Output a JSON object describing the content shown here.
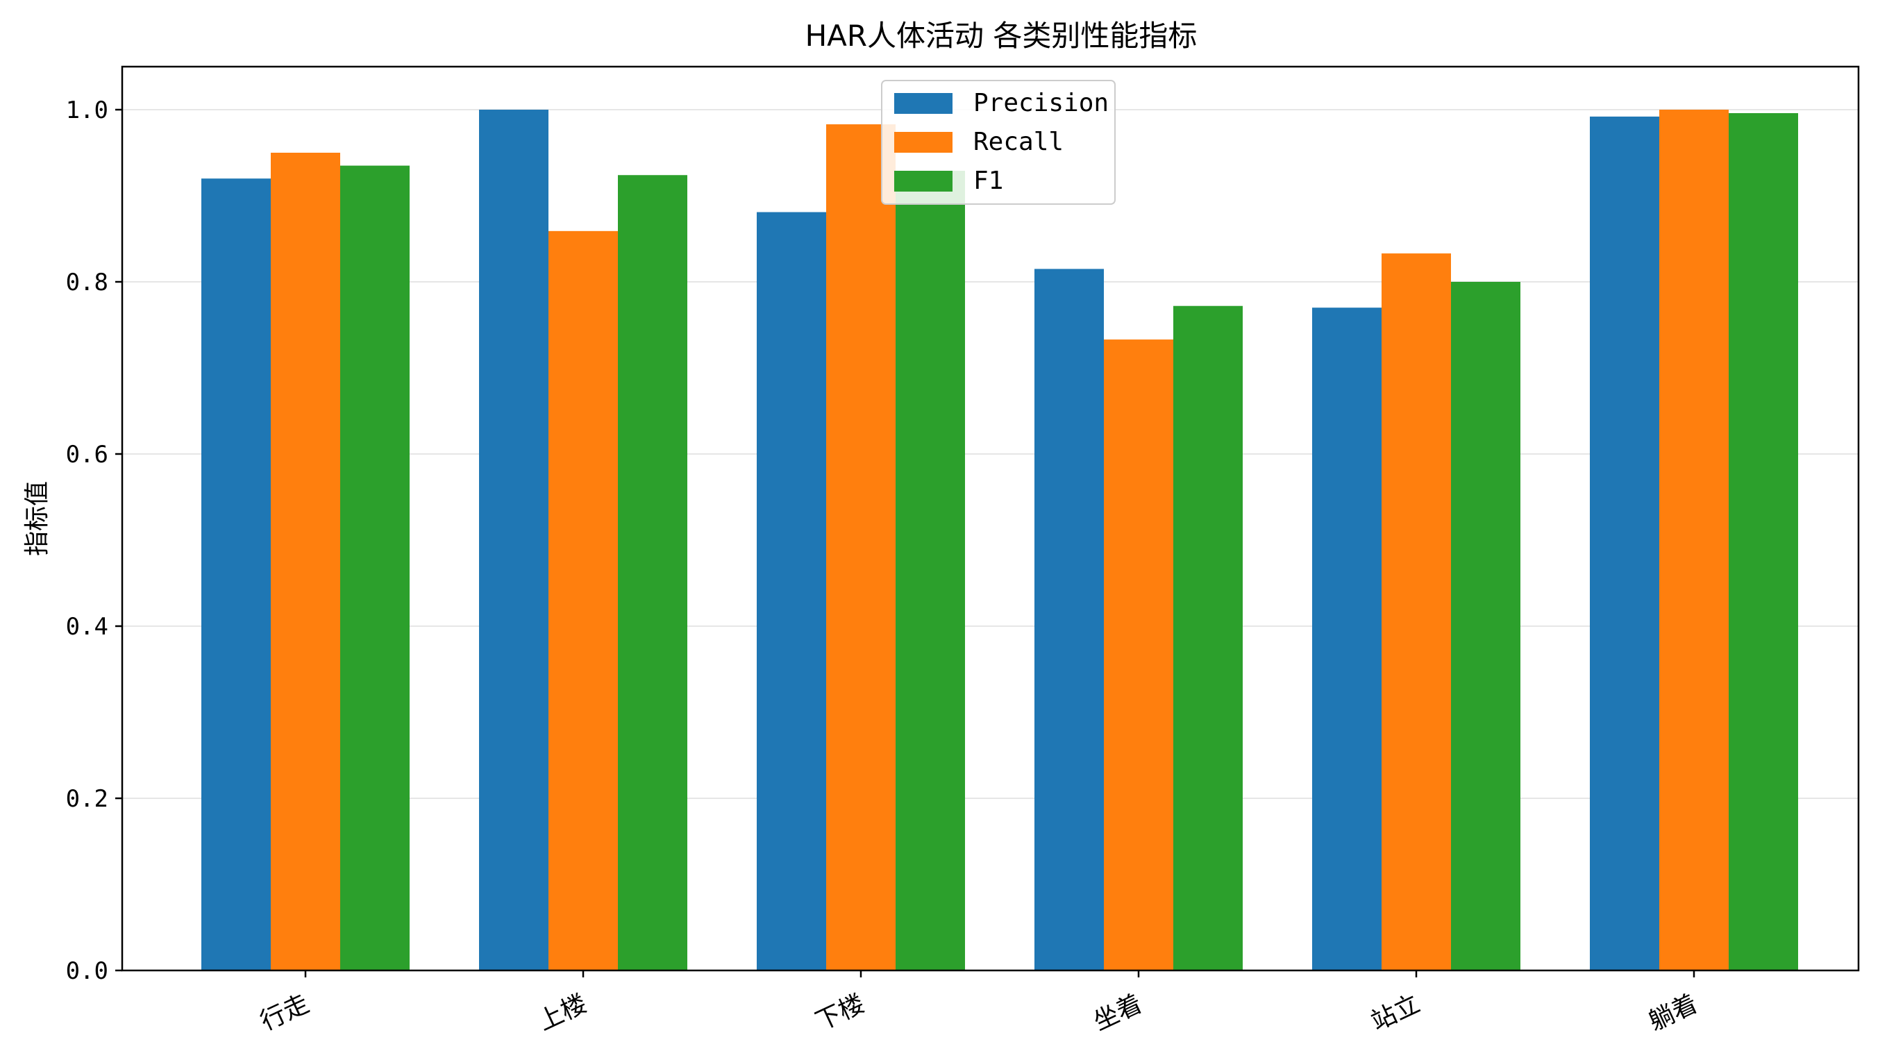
{
  "chart_data": {
    "type": "bar",
    "title": "HAR人体活动 各类别性能指标",
    "xlabel": "",
    "ylabel": "指标值",
    "categories": [
      "行走",
      "上楼",
      "下楼",
      "坐着",
      "站立",
      "躺着"
    ],
    "series": [
      {
        "name": "Precision",
        "color": "#1f77b4",
        "values": [
          0.92,
          1.0,
          0.881,
          0.815,
          0.77,
          0.992
        ]
      },
      {
        "name": "Recall",
        "color": "#ff7f0e",
        "values": [
          0.95,
          0.859,
          0.983,
          0.733,
          0.833,
          1.0
        ]
      },
      {
        "name": "F1",
        "color": "#2ca02c",
        "values": [
          0.935,
          0.924,
          0.929,
          0.772,
          0.8,
          0.996
        ]
      }
    ],
    "ylim": [
      0,
      1.05
    ],
    "yticks": [
      0.0,
      0.2,
      0.4,
      0.6,
      0.8,
      1.0
    ],
    "ytick_labels": [
      "0.0",
      "0.2",
      "0.4",
      "0.6",
      "0.8",
      "1.0"
    ],
    "grid": "y",
    "legend_position": "top-center"
  }
}
